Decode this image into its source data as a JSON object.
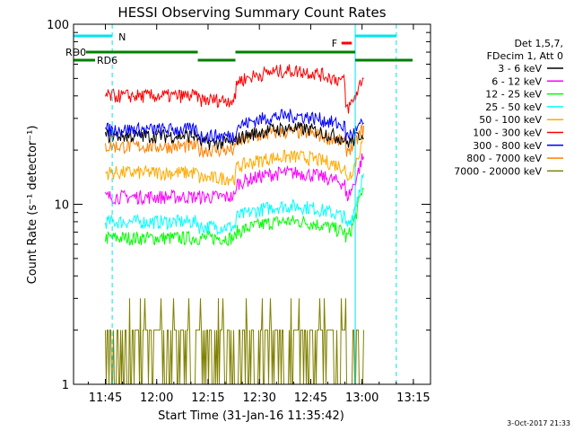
{
  "chart_data": {
    "type": "line",
    "title": "HESSI Observing Summary Count Rates",
    "xlabel": "Start Time (31-Jan-16 11:35:42)",
    "ylabel": "Count Rate (s⁻¹ detector⁻¹)",
    "yscale": "log",
    "ylim": [
      1,
      100
    ],
    "xlim_minutes_after_start": [
      0,
      104.3
    ],
    "x_ticks": [
      "11:45",
      "12:00",
      "12:15",
      "12:30",
      "12:45",
      "13:00",
      "13:15"
    ],
    "y_ticks": [
      "1",
      "10",
      "100"
    ],
    "grid": false,
    "legend_position": "right",
    "legend_header": [
      "Det 1,5,7,",
      "FDecim 1, Att 0"
    ],
    "timestamp": "3-Oct-2017 21:33",
    "flags": [
      {
        "label": "N",
        "color": "#00e5ee"
      },
      {
        "label": "RD0",
        "color": "#008000"
      },
      {
        "label": "RD6",
        "color": "#008000"
      },
      {
        "label": "F",
        "color": "#ff0000"
      }
    ],
    "segment_x": [
      "11:45",
      "12:12",
      "12:23",
      "12:55",
      "13:00"
    ],
    "series": [
      {
        "name": "3 - 6 keV",
        "color": "#000000",
        "values": [
          24,
          22,
          23,
          22,
          25
        ]
      },
      {
        "name": "6 - 12 keV",
        "color": "#ff00ff",
        "values": [
          11,
          11,
          13,
          11,
          18
        ]
      },
      {
        "name": "12 - 25 keV",
        "color": "#00ff00",
        "values": [
          6.5,
          6.5,
          7,
          6.5,
          12
        ]
      },
      {
        "name": "25 - 50 keV",
        "color": "#00ffff",
        "values": [
          8,
          7.5,
          8.5,
          7.5,
          14
        ]
      },
      {
        "name": "50 - 100 keV",
        "color": "#ffaa00",
        "values": [
          15,
          14,
          16,
          14,
          22
        ]
      },
      {
        "name": "100 - 300 keV",
        "color": "#ff0000",
        "values": [
          40,
          38,
          48,
          34,
          50
        ]
      },
      {
        "name": "300 - 800 keV",
        "color": "#0000ff",
        "values": [
          26,
          24,
          27,
          24,
          28
        ]
      },
      {
        "name": "800 - 7000 keV",
        "color": "#ff8000",
        "values": [
          21,
          20,
          22,
          20,
          26
        ]
      },
      {
        "name": "7000 - 20000 keV",
        "color": "#808000",
        "values": [
          1.5,
          1.5,
          1.5,
          1.5,
          2.5
        ]
      }
    ]
  }
}
